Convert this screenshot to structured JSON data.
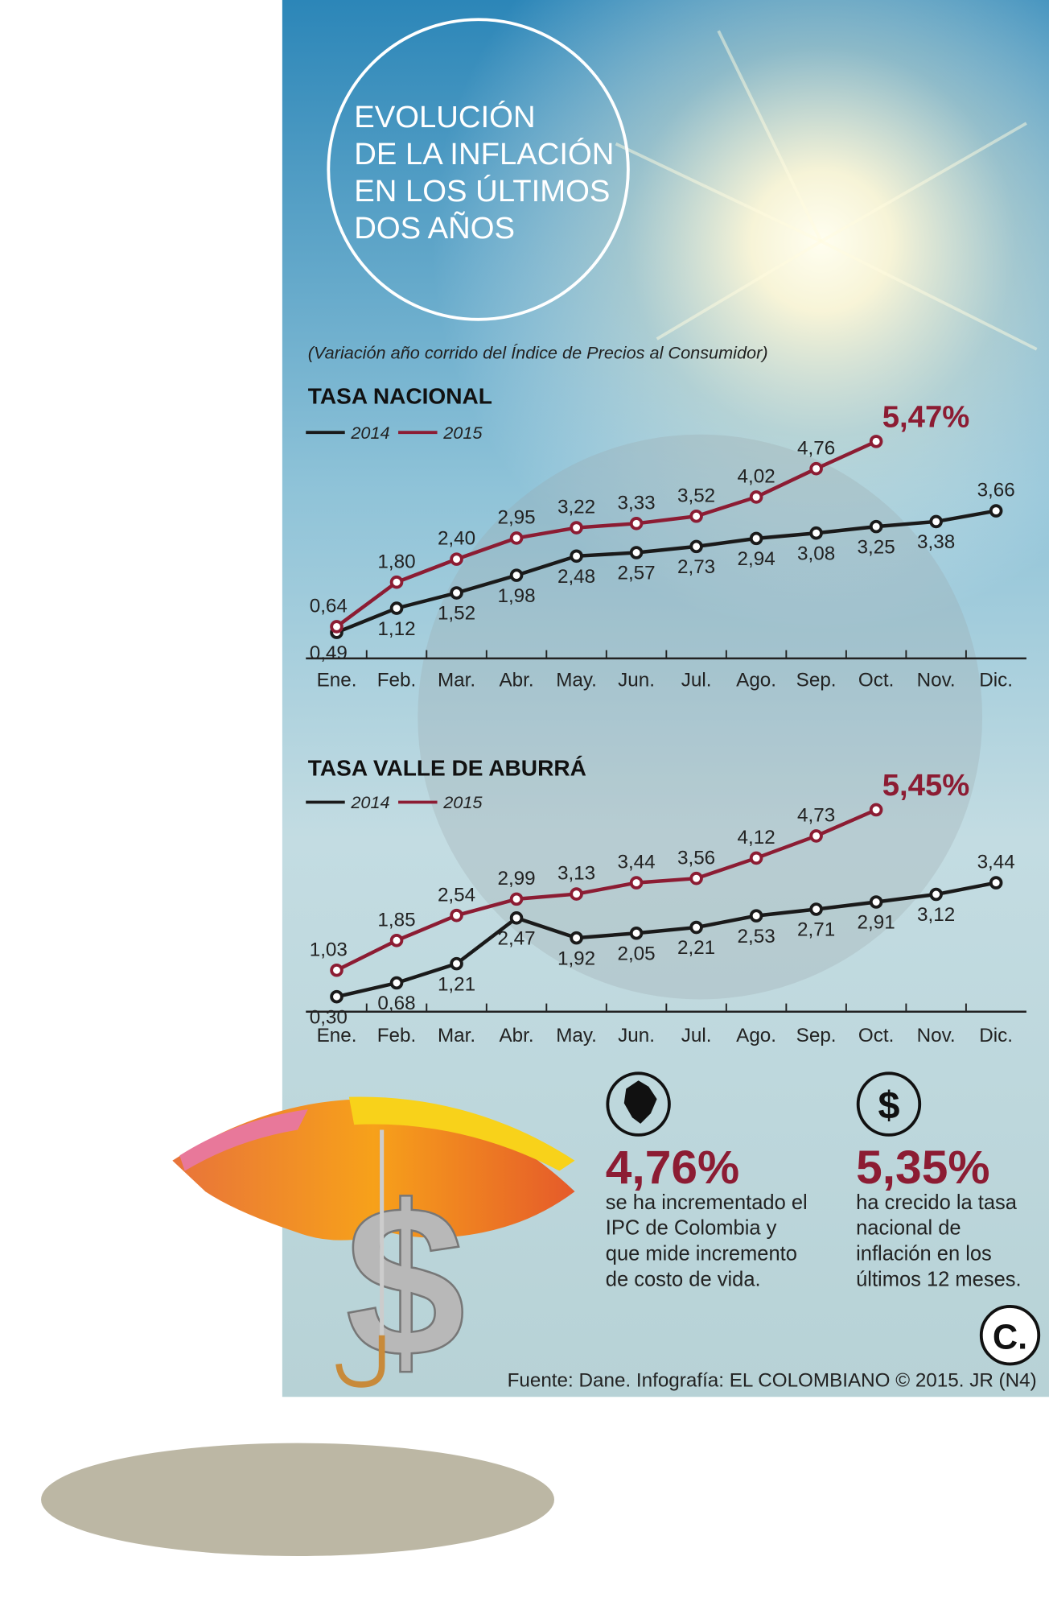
{
  "header": {
    "title_lines": [
      "EVOLUCIÓN",
      "DE LA INFLACIÓN",
      "EN LOS ÚLTIMOS",
      "DOS AÑOS"
    ],
    "subtitle": "(Variación año corrido del Índice de Precios al Consumidor)"
  },
  "chart_data": [
    {
      "type": "line",
      "title": "TASA NACIONAL",
      "categories": [
        "Ene.",
        "Feb.",
        "Mar.",
        "Abr.",
        "May.",
        "Jun.",
        "Jul.",
        "Ago.",
        "Sep.",
        "Oct.",
        "Nov.",
        "Dic."
      ],
      "ylim": [
        0,
        6
      ],
      "series": [
        {
          "name": "2014",
          "color": "#1a1a1a",
          "values": [
            0.49,
            1.12,
            1.52,
            1.98,
            2.48,
            2.57,
            2.73,
            2.94,
            3.08,
            3.25,
            3.38,
            3.66
          ],
          "value_labels": [
            "0,49",
            "1,12",
            "1,52",
            "1,98",
            "2,48",
            "2,57",
            "2,73",
            "2,94",
            "3,08",
            "3,25",
            "3,38",
            "3,66"
          ]
        },
        {
          "name": "2015",
          "color": "#8c1c33",
          "values": [
            0.64,
            1.8,
            2.4,
            2.95,
            3.22,
            3.33,
            3.52,
            4.02,
            4.76,
            5.47,
            null,
            null
          ],
          "value_labels": [
            "0,64",
            "1,80",
            "2,40",
            "2,95",
            "3,22",
            "3,33",
            "3,52",
            "4,02",
            "4,76",
            "5,47%",
            null,
            null
          ]
        }
      ]
    },
    {
      "type": "line",
      "title": "TASA VALLE DE ABURRÁ",
      "categories": [
        "Ene.",
        "Feb.",
        "Mar.",
        "Abr.",
        "May.",
        "Jun.",
        "Jul.",
        "Ago.",
        "Sep.",
        "Oct.",
        "Nov.",
        "Dic."
      ],
      "ylim": [
        0,
        6
      ],
      "series": [
        {
          "name": "2014",
          "color": "#1a1a1a",
          "values": [
            0.3,
            0.68,
            1.21,
            2.47,
            1.92,
            2.05,
            2.21,
            2.53,
            2.71,
            2.91,
            3.12,
            3.44
          ],
          "value_labels": [
            "0,30",
            "0,68",
            "1,21",
            "2,47",
            "1,92",
            "2,05",
            "2,21",
            "2,53",
            "2,71",
            "2,91",
            "3,12",
            "3,44"
          ]
        },
        {
          "name": "2015",
          "color": "#8c1c33",
          "values": [
            1.03,
            1.85,
            2.54,
            2.99,
            3.13,
            3.44,
            3.56,
            4.12,
            4.73,
            5.45,
            null,
            null
          ],
          "value_labels": [
            "1,03",
            "1,85",
            "2,54",
            "2,99",
            "3,13",
            "3,44",
            "3,56",
            "4,12",
            "4,73",
            "5,45%",
            null,
            null
          ]
        }
      ]
    }
  ],
  "stats": [
    {
      "icon": "",
      "value": "4,76%",
      "text_lines": [
        "se ha incrementado el",
        "IPC de Colombia y",
        "que mide incremento",
        "de costo de vida."
      ]
    },
    {
      "icon": "$",
      "value": "5,35%",
      "text_lines": [
        "ha crecido la tasa",
        "nacional de",
        "inflación en los",
        "últimos 12 meses."
      ]
    }
  ],
  "logo": "C.",
  "source": "Fuente: Dane. Infografía: EL COLOMBIANO © 2015. JR (N4)"
}
